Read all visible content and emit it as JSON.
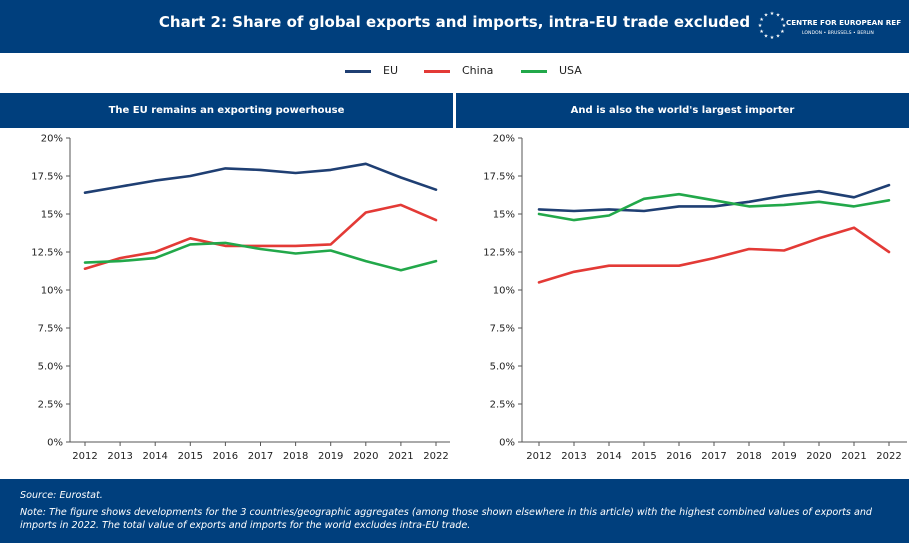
{
  "header": {
    "title": "Chart 2: Share of global exports and imports, intra-EU trade excluded",
    "logo_name": "CENTRE FOR EUROPEAN REFORM",
    "logo_cities": "LONDON • BRUSSELS • BERLIN"
  },
  "colors": {
    "EU": "#1f3f73",
    "China": "#e33a36",
    "USA": "#22a84a",
    "brand": "#003f7d"
  },
  "legend": [
    {
      "name": "EU",
      "color": "#1f3f73"
    },
    {
      "name": "China",
      "color": "#e33a36"
    },
    {
      "name": "USA",
      "color": "#22a84a"
    }
  ],
  "chart_data": [
    {
      "type": "line",
      "title": "The EU remains an exporting powerhouse",
      "x": [
        "2012",
        "2013",
        "2014",
        "2015",
        "2016",
        "2017",
        "2018",
        "2019",
        "2020",
        "2021",
        "2022"
      ],
      "ylim": [
        0,
        20
      ],
      "yticks": [
        "0%",
        "2.5%",
        "5.0%",
        "7.5%",
        "10%",
        "12.5%",
        "15%",
        "17.5%",
        "20%"
      ],
      "grid": false,
      "series": [
        {
          "name": "EU",
          "values": [
            16.4,
            16.8,
            17.2,
            17.5,
            18.0,
            17.9,
            17.7,
            17.9,
            18.3,
            17.4,
            16.6
          ]
        },
        {
          "name": "China",
          "values": [
            11.4,
            12.1,
            12.5,
            13.4,
            12.9,
            12.9,
            12.9,
            13.0,
            15.1,
            15.6,
            14.6
          ]
        },
        {
          "name": "USA",
          "values": [
            11.8,
            11.9,
            12.1,
            13.0,
            13.1,
            12.7,
            12.4,
            12.6,
            11.9,
            11.3,
            11.9
          ]
        }
      ]
    },
    {
      "type": "line",
      "title": "And is also the world's largest importer",
      "x": [
        "2012",
        "2013",
        "2014",
        "2015",
        "2016",
        "2017",
        "2018",
        "2019",
        "2020",
        "2021",
        "2022"
      ],
      "ylim": [
        0,
        20
      ],
      "yticks": [
        "0%",
        "2.5%",
        "5.0%",
        "7.5%",
        "10%",
        "12.5%",
        "15%",
        "17.5%",
        "20%"
      ],
      "grid": false,
      "series": [
        {
          "name": "EU",
          "values": [
            15.3,
            15.2,
            15.3,
            15.2,
            15.5,
            15.5,
            15.8,
            16.2,
            16.5,
            16.1,
            16.9
          ]
        },
        {
          "name": "China",
          "values": [
            10.5,
            11.2,
            11.6,
            11.6,
            11.6,
            12.1,
            12.7,
            12.6,
            13.4,
            14.1,
            12.5
          ]
        },
        {
          "name": "USA",
          "values": [
            15.0,
            14.6,
            14.9,
            16.0,
            16.3,
            15.9,
            15.5,
            15.6,
            15.8,
            15.5,
            15.9
          ]
        }
      ]
    }
  ],
  "footer": {
    "source": "Source: Eurostat.",
    "note": "Note: The figure shows developments for the 3 countries/geographic aggregates (among those shown elsewhere in this article) with the highest combined values of exports and imports in 2022. The total value of exports and imports for the world excludes intra-EU trade."
  }
}
